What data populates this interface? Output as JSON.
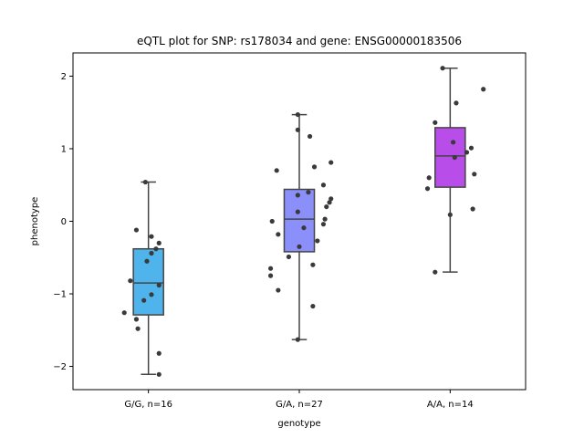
{
  "chart_data": {
    "type": "box",
    "title": "eQTL plot for SNP: rs178034 and gene: ENSG00000183506",
    "xlabel": "genotype",
    "ylabel": "phenotype",
    "ylim": [
      -2.32,
      2.32
    ],
    "yticks": [
      -2,
      -1,
      0,
      1,
      2
    ],
    "ytick_labels": [
      "−2",
      "−1",
      "0",
      "1",
      "2"
    ],
    "grid": false,
    "categories": [
      "G/G, n=16",
      "G/A, n=27",
      "A/A, n=14"
    ],
    "boxes": [
      {
        "category": "G/G, n=16",
        "color": "#4fb4ec",
        "whisker_low": -2.11,
        "q1": -1.29,
        "median": -0.85,
        "q3": -0.38,
        "whisker_high": 0.54,
        "points": [
          {
            "x": -0.02,
            "y": 0.54
          },
          {
            "x": -0.08,
            "y": -0.12
          },
          {
            "x": 0.02,
            "y": -0.21
          },
          {
            "x": 0.07,
            "y": -0.3
          },
          {
            "x": 0.05,
            "y": -0.38
          },
          {
            "x": 0.02,
            "y": -0.44
          },
          {
            "x": -0.01,
            "y": -0.55
          },
          {
            "x": -0.12,
            "y": -0.82
          },
          {
            "x": 0.07,
            "y": -0.88
          },
          {
            "x": 0.02,
            "y": -1.01
          },
          {
            "x": -0.03,
            "y": -1.09
          },
          {
            "x": -0.16,
            "y": -1.26
          },
          {
            "x": -0.08,
            "y": -1.35
          },
          {
            "x": -0.07,
            "y": -1.48
          },
          {
            "x": 0.07,
            "y": -1.82
          },
          {
            "x": 0.07,
            "y": -2.11
          }
        ]
      },
      {
        "category": "G/A, n=27",
        "color": "#8b8ffa",
        "whisker_low": -1.63,
        "q1": -0.42,
        "median": 0.03,
        "q3": 0.44,
        "whisker_high": 1.47,
        "points": [
          {
            "x": -0.01,
            "y": 1.47
          },
          {
            "x": -0.01,
            "y": 1.26
          },
          {
            "x": 0.07,
            "y": 1.17
          },
          {
            "x": 0.21,
            "y": 0.81
          },
          {
            "x": 0.1,
            "y": 0.75
          },
          {
            "x": -0.15,
            "y": 0.7
          },
          {
            "x": 0.16,
            "y": 0.5
          },
          {
            "x": 0.06,
            "y": 0.4
          },
          {
            "x": -0.01,
            "y": 0.36
          },
          {
            "x": 0.21,
            "y": 0.31
          },
          {
            "x": 0.2,
            "y": 0.26
          },
          {
            "x": 0.18,
            "y": 0.2
          },
          {
            "x": -0.01,
            "y": 0.13
          },
          {
            "x": 0.17,
            "y": 0.03
          },
          {
            "x": -0.18,
            "y": 0.0
          },
          {
            "x": 0.16,
            "y": -0.04
          },
          {
            "x": 0.03,
            "y": -0.09
          },
          {
            "x": -0.14,
            "y": -0.18
          },
          {
            "x": 0.12,
            "y": -0.27
          },
          {
            "x": 0.0,
            "y": -0.35
          },
          {
            "x": -0.07,
            "y": -0.49
          },
          {
            "x": 0.09,
            "y": -0.6
          },
          {
            "x": -0.19,
            "y": -0.65
          },
          {
            "x": -0.19,
            "y": -0.75
          },
          {
            "x": -0.14,
            "y": -0.95
          },
          {
            "x": 0.09,
            "y": -1.17
          },
          {
            "x": -0.01,
            "y": -1.63
          }
        ]
      },
      {
        "category": "A/A, n=14",
        "color": "#b94dea",
        "whisker_low": -0.7,
        "q1": 0.47,
        "median": 0.9,
        "q3": 1.29,
        "whisker_high": 2.11,
        "points": [
          {
            "x": -0.05,
            "y": 2.11
          },
          {
            "x": 0.22,
            "y": 1.82
          },
          {
            "x": 0.04,
            "y": 1.63
          },
          {
            "x": -0.1,
            "y": 1.36
          },
          {
            "x": 0.02,
            "y": 1.09
          },
          {
            "x": 0.14,
            "y": 1.01
          },
          {
            "x": 0.11,
            "y": 0.95
          },
          {
            "x": 0.03,
            "y": 0.88
          },
          {
            "x": 0.16,
            "y": 0.65
          },
          {
            "x": -0.14,
            "y": 0.6
          },
          {
            "x": -0.15,
            "y": 0.45
          },
          {
            "x": 0.15,
            "y": 0.17
          },
          {
            "x": -0.0,
            "y": 0.09
          },
          {
            "x": -0.1,
            "y": -0.7
          }
        ]
      }
    ]
  }
}
